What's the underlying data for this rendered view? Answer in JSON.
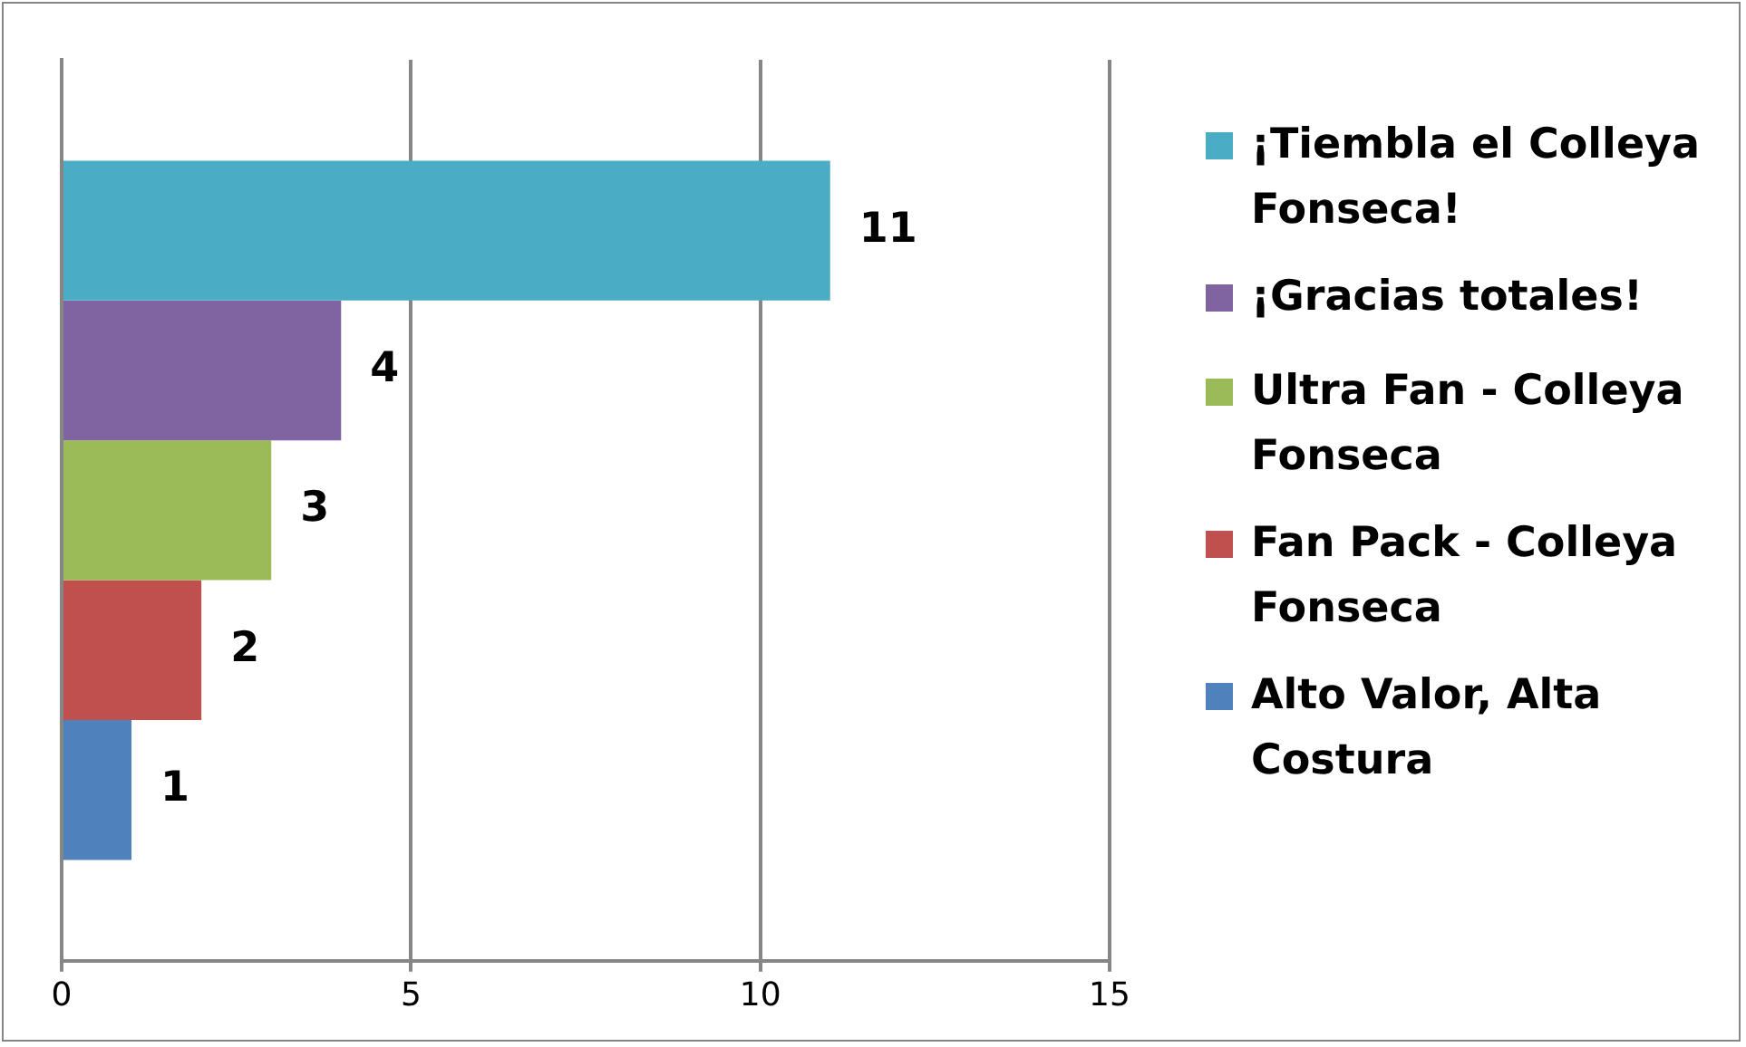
{
  "chart_data": {
    "type": "bar",
    "orientation": "horizontal",
    "categories": [
      null
    ],
    "series": [
      {
        "name": "¡Tiembla el Colleya Fonseca!",
        "color": "#4bacc6",
        "values": [
          11
        ]
      },
      {
        "name": "¡Gracias totales!",
        "color": "#8064a2",
        "values": [
          4
        ]
      },
      {
        "name": "Ultra Fan - Colleya Fonseca",
        "color": "#9bbb59",
        "values": [
          3
        ]
      },
      {
        "name": "Fan Pack - Colleya Fonseca",
        "color": "#c0504d",
        "values": [
          2
        ]
      },
      {
        "name": "Alto Valor, Alta Costura",
        "color": "#4f81bd",
        "values": [
          1
        ]
      }
    ],
    "xlim": [
      0,
      15
    ],
    "xticks": [
      0,
      5,
      10,
      15
    ],
    "grid": "x",
    "legend": "right",
    "data_labels": true
  }
}
